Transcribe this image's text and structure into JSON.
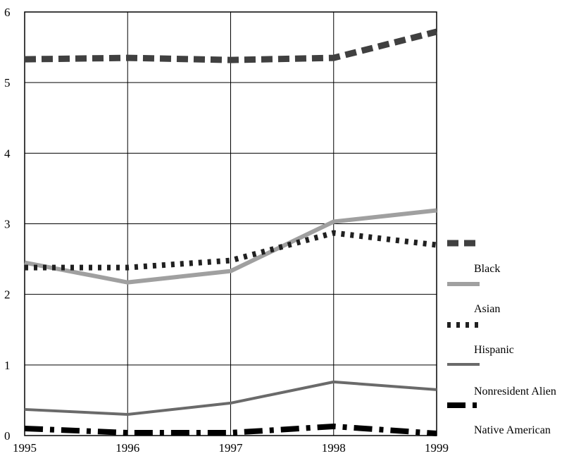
{
  "chart_data": {
    "type": "line",
    "title": "",
    "xlabel": "",
    "ylabel": "",
    "x": [
      1995,
      1996,
      1997,
      1998,
      1999
    ],
    "x_tick_labels": [
      "1995",
      "1996",
      "1997",
      "1998",
      "1999"
    ],
    "ylim": [
      0,
      6
    ],
    "y_ticks": [
      0,
      1,
      2,
      3,
      4,
      5,
      6
    ],
    "y_tick_labels": [
      "0",
      "1",
      "2",
      "3",
      "4",
      "5",
      "6"
    ],
    "grid": true,
    "legend_position": "right",
    "series": [
      {
        "name": "Black",
        "values": [
          5.33,
          5.35,
          5.32,
          5.35,
          5.72
        ],
        "color": "#404040",
        "style": "dashed"
      },
      {
        "name": "Asian",
        "values": [
          2.45,
          2.17,
          2.33,
          3.03,
          3.19
        ],
        "color": "#a0a0a0",
        "style": "solid"
      },
      {
        "name": "Hispanic",
        "values": [
          2.38,
          2.38,
          2.48,
          2.87,
          2.7
        ],
        "color": "#202020",
        "style": "dotted"
      },
      {
        "name": "Nonresident Alien",
        "values": [
          0.37,
          0.3,
          0.46,
          0.76,
          0.65
        ],
        "color": "#6a6a6a",
        "style": "solid-thin"
      },
      {
        "name": "Native American",
        "values": [
          0.1,
          0.04,
          0.04,
          0.13,
          0.03
        ],
        "color": "#000000",
        "style": "dashdot"
      }
    ]
  }
}
